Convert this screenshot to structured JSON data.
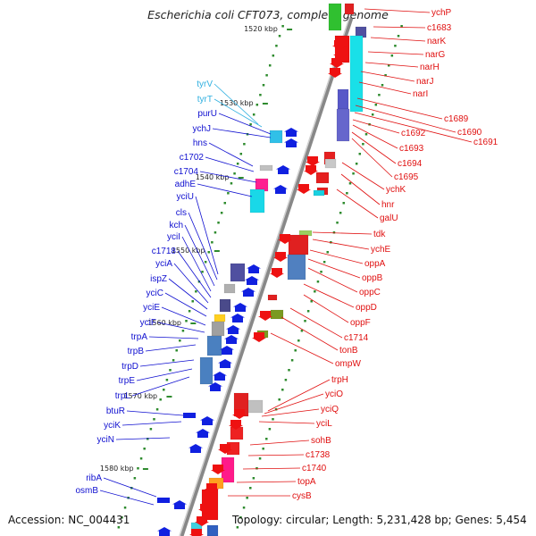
{
  "title": "Escherichia coli CFT073, complete genome",
  "footer": {
    "accession": "Accession: NC_004431",
    "topology": "Topology: circular; Length: 5,231,428 bp; Genes: 5,454"
  },
  "colors": {
    "forward_label": "#1010d0",
    "reverse_label": "#e01010",
    "trna_label": "#30b0e0",
    "backbone": "#888888",
    "tick": "#2e8b2e"
  },
  "ruler_labels": [
    "1520 kbp",
    "1530 kbp",
    "1540 kbp",
    "1550 kbp",
    "1560 kbp",
    "1570 kbp",
    "1580 kbp"
  ],
  "forward_genes": [
    "tyrV",
    "tyrT",
    "purU",
    "ychJ",
    "hns",
    "c1702",
    "c1704",
    "adhE",
    "yciU",
    "cls",
    "kch",
    "yciI",
    "c1718",
    "yciA",
    "ispZ",
    "yciC",
    "yciE",
    "yciF",
    "trpA",
    "trpB",
    "trpD",
    "trpE",
    "trpL",
    "btuR",
    "yciK",
    "yciN",
    "ribA",
    "osmB"
  ],
  "reverse_genes": [
    "ychP",
    "c1683",
    "narK",
    "narG",
    "narH",
    "narJ",
    "narI",
    "c1689",
    "c1690",
    "c1691",
    "c1692",
    "c1693",
    "c1694",
    "c1695",
    "ychK",
    "hnr",
    "galU",
    "tdk",
    "ychE",
    "oppA",
    "oppB",
    "oppC",
    "oppD",
    "oppF",
    "c1714",
    "tonB",
    "ompW",
    "trpH",
    "yciO",
    "yciQ",
    "yciL",
    "sohB",
    "c1738",
    "c1740",
    "topA",
    "cysB"
  ]
}
